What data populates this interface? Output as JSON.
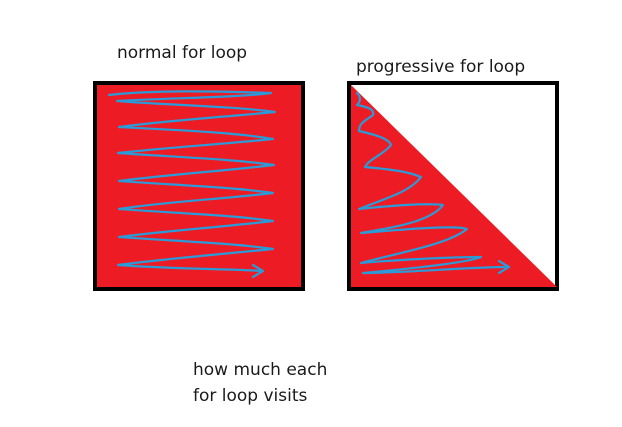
{
  "labels": {
    "normal": "normal for loop",
    "progressive": "progressive for loop",
    "caption_line1": "how much each",
    "caption_line2": "for loop visits"
  },
  "colors": {
    "fill": "#ed1c24",
    "border": "#000000",
    "scribble": "#2d9ad8",
    "background": "#ffffff"
  },
  "shapes": {
    "normal": "square-filled",
    "progressive": "lower-left-triangle-filled"
  }
}
